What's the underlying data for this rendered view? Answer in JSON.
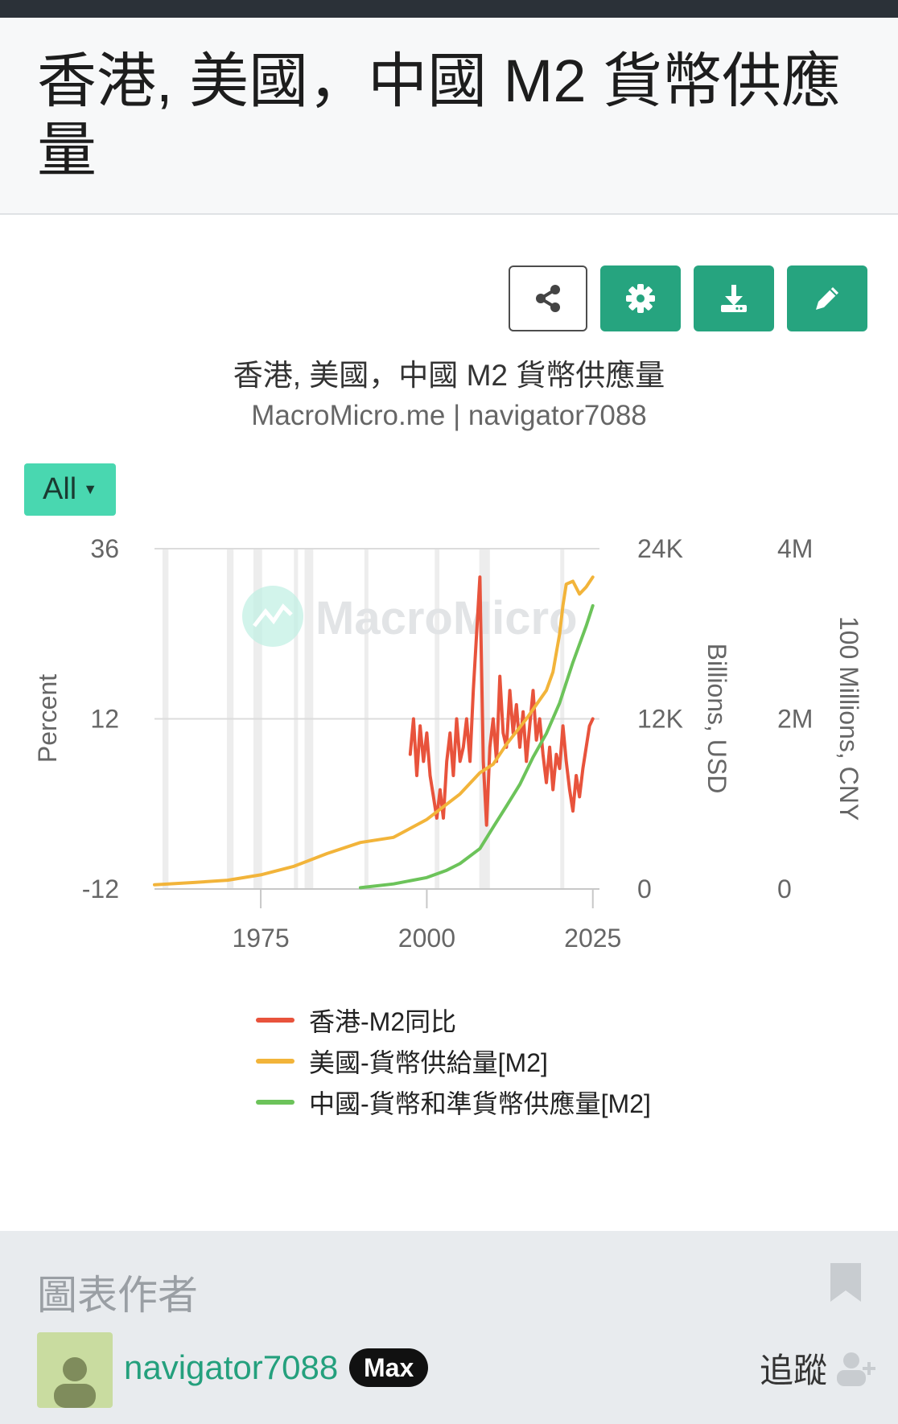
{
  "page": {
    "title": "香港, 美國，中國 M2 貨幣供應量"
  },
  "toolbar": {
    "share_icon": "share-icon",
    "settings_icon": "gear-icon",
    "download_icon": "download-icon",
    "edit_icon": "pencil-icon"
  },
  "chart_header": {
    "title": "香港, 美國，中國 M2 貨幣供應量",
    "subtitle": "MacroMicro.me | navigator7088"
  },
  "range_selector": {
    "label": "All"
  },
  "watermark": "MacroMicro",
  "colors": {
    "accent": "#26a47f",
    "hk": "#e8533c",
    "us": "#f2b43a",
    "cn": "#6cc35a"
  },
  "chart_data": {
    "type": "line",
    "x_ticks": [
      "1975",
      "2000",
      "2025"
    ],
    "x_range": [
      1959,
      2026
    ],
    "axes": [
      {
        "id": "left",
        "label": "Percent",
        "min": -12,
        "max": 36,
        "ticks": [
          "36",
          "12",
          "-12"
        ]
      },
      {
        "id": "usd",
        "label": "Billions, USD",
        "min": 0,
        "max": 24000,
        "ticks": [
          "24K",
          "12K",
          "0"
        ]
      },
      {
        "id": "cny",
        "label": "100 Millions, CNY",
        "min": 0,
        "max": 4000000,
        "ticks": [
          "4M",
          "2M",
          "0"
        ]
      }
    ],
    "grid": true,
    "legend_position": "bottom",
    "series": [
      {
        "name": "香港-M2同比",
        "axis": "left",
        "points": [
          [
            1997.5,
            7
          ],
          [
            1998,
            12
          ],
          [
            1998.5,
            4
          ],
          [
            1999,
            11
          ],
          [
            1999.5,
            6
          ],
          [
            2000,
            10
          ],
          [
            2000.5,
            4
          ],
          [
            2001,
            1
          ],
          [
            2001.5,
            -2
          ],
          [
            2002,
            2
          ],
          [
            2002.5,
            -2
          ],
          [
            2003,
            6
          ],
          [
            2003.5,
            10
          ],
          [
            2004,
            4
          ],
          [
            2004.5,
            12
          ],
          [
            2005,
            6
          ],
          [
            2005.5,
            8
          ],
          [
            2006,
            12
          ],
          [
            2006.5,
            6
          ],
          [
            2007,
            16
          ],
          [
            2007.5,
            24
          ],
          [
            2008,
            32
          ],
          [
            2008.5,
            6
          ],
          [
            2009,
            -3
          ],
          [
            2009.5,
            8
          ],
          [
            2010,
            12
          ],
          [
            2010.5,
            6
          ],
          [
            2011,
            18
          ],
          [
            2011.5,
            10
          ],
          [
            2012,
            8
          ],
          [
            2012.5,
            16
          ],
          [
            2013,
            10
          ],
          [
            2013.5,
            14
          ],
          [
            2014,
            8
          ],
          [
            2014.5,
            13
          ],
          [
            2015,
            6
          ],
          [
            2015.5,
            11
          ],
          [
            2016,
            16
          ],
          [
            2016.5,
            9
          ],
          [
            2017,
            12
          ],
          [
            2017.5,
            7
          ],
          [
            2018,
            3
          ],
          [
            2018.5,
            8
          ],
          [
            2019,
            2
          ],
          [
            2019.5,
            7
          ],
          [
            2020,
            5
          ],
          [
            2020.5,
            11
          ],
          [
            2021,
            6
          ],
          [
            2021.5,
            2
          ],
          [
            2022,
            -1
          ],
          [
            2022.5,
            4
          ],
          [
            2023,
            1
          ],
          [
            2023.5,
            5
          ],
          [
            2024,
            8
          ],
          [
            2024.5,
            11
          ],
          [
            2025,
            12
          ]
        ]
      },
      {
        "name": "美國-貨幣供給量[M2]",
        "axis": "usd",
        "points": [
          [
            1959,
            300
          ],
          [
            1965,
            460
          ],
          [
            1970,
            620
          ],
          [
            1975,
            1000
          ],
          [
            1980,
            1600
          ],
          [
            1985,
            2500
          ],
          [
            1990,
            3280
          ],
          [
            1995,
            3640
          ],
          [
            2000,
            4900
          ],
          [
            2005,
            6700
          ],
          [
            2008,
            8200
          ],
          [
            2010,
            8800
          ],
          [
            2012,
            10200
          ],
          [
            2015,
            12000
          ],
          [
            2018,
            14000
          ],
          [
            2019,
            15300
          ],
          [
            2020,
            18000
          ],
          [
            2020.5,
            20000
          ],
          [
            2021,
            21500
          ],
          [
            2022,
            21700
          ],
          [
            2023,
            20800
          ],
          [
            2024,
            21300
          ],
          [
            2025,
            22000
          ]
        ]
      },
      {
        "name": "中國-貨幣和準貨幣供應量[M2]",
        "axis": "cny",
        "points": [
          [
            1990,
            15000
          ],
          [
            1995,
            60000
          ],
          [
            2000,
            134600
          ],
          [
            2003,
            220000
          ],
          [
            2005,
            298800
          ],
          [
            2008,
            475000
          ],
          [
            2010,
            725800
          ],
          [
            2012,
            974200
          ],
          [
            2014,
            1228000
          ],
          [
            2016,
            1550000
          ],
          [
            2018,
            1827000
          ],
          [
            2020,
            2186000
          ],
          [
            2022,
            2664000
          ],
          [
            2024,
            3091000
          ],
          [
            2025,
            3330000
          ]
        ]
      }
    ]
  },
  "author": {
    "heading": "圖表作者",
    "name": "navigator7088",
    "badge": "Max",
    "follow_label": "追蹤"
  }
}
